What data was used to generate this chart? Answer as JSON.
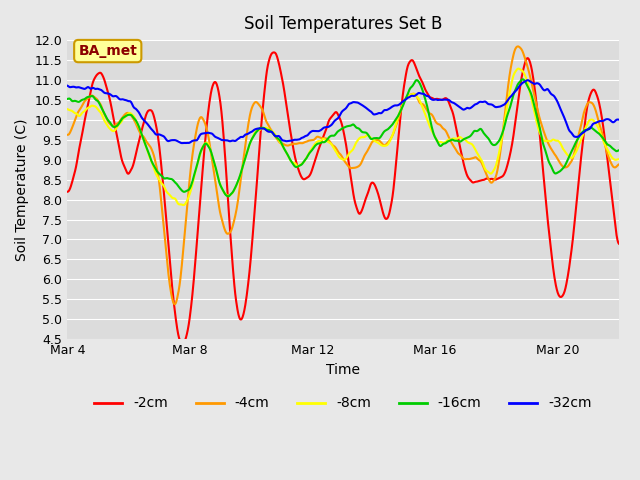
{
  "title": "Soil Temperatures Set B",
  "xlabel": "Time",
  "ylabel": "Soil Temperature (C)",
  "ylim": [
    4.5,
    12.0
  ],
  "yticks": [
    4.5,
    5.0,
    5.5,
    6.0,
    6.5,
    7.0,
    7.5,
    8.0,
    8.5,
    9.0,
    9.5,
    10.0,
    10.5,
    11.0,
    11.5,
    12.0
  ],
  "background_color": "#e8e8e8",
  "plot_bg_color": "#dcdcdc",
  "line_colors": {
    "-2cm": "#ff0000",
    "-4cm": "#ff9900",
    "-8cm": "#ffff00",
    "-16cm": "#00cc00",
    "-32cm": "#0000ff"
  },
  "line_width": 1.5,
  "annotation_text": "BA_met",
  "annotation_bg": "#ffff99",
  "annotation_border": "#cc9900",
  "annotation_text_color": "#8b0000",
  "x_tick_labels": [
    "Mar 4",
    "Mar 8",
    "Mar 12",
    "Mar 16",
    "Mar 20"
  ],
  "xlim": [
    0,
    18
  ],
  "x_tick_positions": [
    0,
    4,
    8,
    12,
    16
  ]
}
